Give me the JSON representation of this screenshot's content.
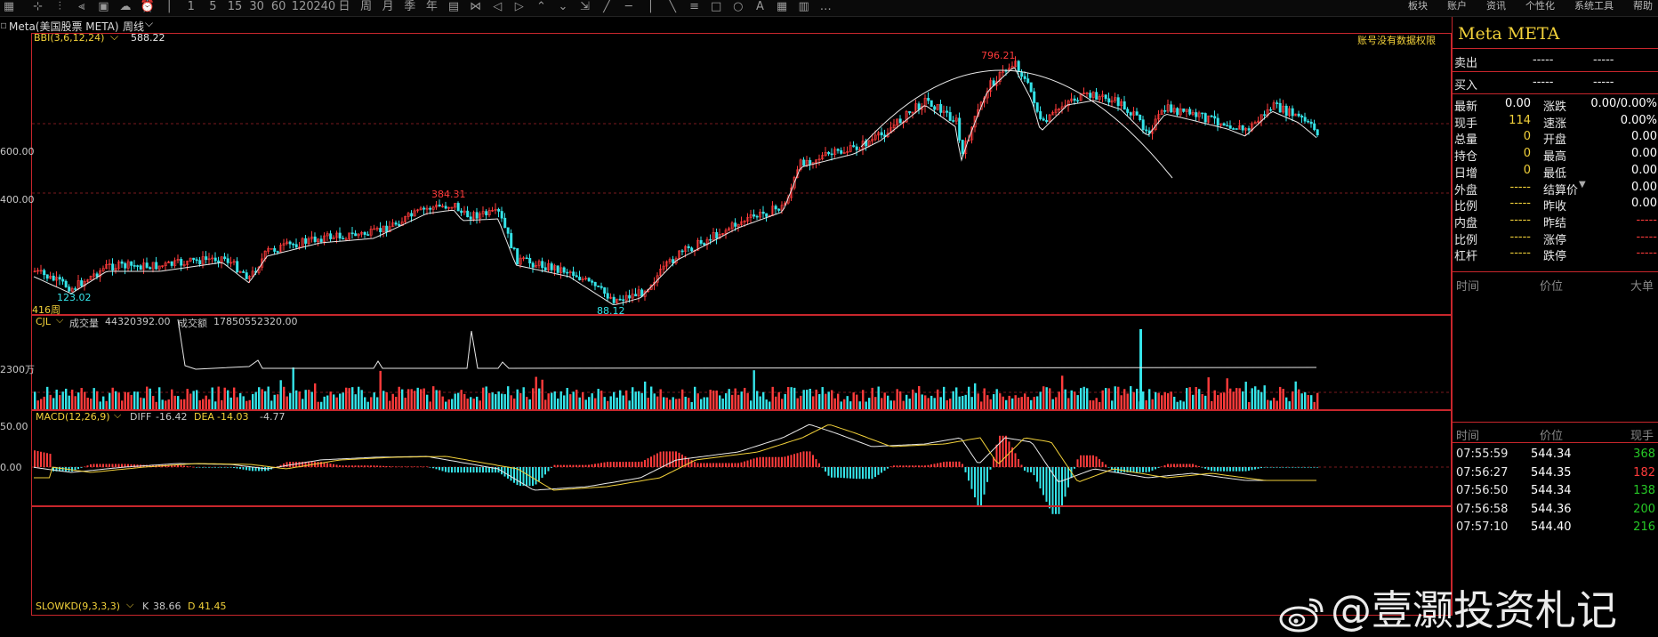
{
  "toolbar": {
    "icons": [
      "grid-icon",
      "crosshair-icon",
      "candle-icon",
      "split-icon",
      "window-icon",
      "cloud-icon",
      "alarm-icon",
      "dash-icon",
      "period-1-icon",
      "period-5-icon",
      "period-15-icon",
      "period-30-icon",
      "period-60-icon",
      "period-120-icon",
      "period-240-icon",
      "day-icon",
      "week-icon",
      "month-icon",
      "season-icon",
      "year-icon",
      "multi-icon",
      "cross-icon",
      "left-icon",
      "right-icon",
      "up-icon",
      "down-icon",
      "expand-icon",
      "line-icon",
      "hline-icon",
      "vline-icon",
      "ray-icon",
      "channel-icon",
      "rect-icon",
      "ellipse-icon",
      "text-icon",
      "grid2-icon",
      "layout-icon",
      "more-icon"
    ],
    "menu": [
      "板块",
      "账户",
      "资讯",
      "个性化",
      "系统工具",
      "帮助"
    ]
  },
  "stockbar": {
    "name": "Meta(美国股票 META)",
    "period": "周线",
    "period_arrow": "⌵"
  },
  "main_pane": {
    "indicator": "BBI(3,6,12,24)",
    "indicator_value": "588.22",
    "notice": "账号没有数据权限",
    "y_labels": [
      "600.00",
      "400.00"
    ],
    "high_label": "796.21",
    "mid_high_label": "384.31",
    "low_label_left": "123.02",
    "low_label_mid": "88.12",
    "bars_label": "416周"
  },
  "volume_pane": {
    "indicator": "CJL",
    "vol_label": "成交量",
    "vol_value": "44320392.00",
    "amount_label": "成交额",
    "amount_value": "17850552320.00",
    "y_label": "2300万"
  },
  "macd_pane": {
    "indicator": "MACD(12,26,9)",
    "diff_label": "DIFF",
    "diff_value": "-16.42",
    "dea_label": "DEA",
    "dea_value": "-14.03",
    "macd_value": "-4.77",
    "y_labels": [
      "50.00",
      "0.00"
    ]
  },
  "kd_pane": {
    "indicator": "SLOWKD(9,3,3,3)",
    "k_label": "K",
    "k_value": "38.66",
    "d_label": "D",
    "d_value": "41.45"
  },
  "quote_panel": {
    "title": "Meta META",
    "sell": {
      "label": "卖出",
      "price": "-----",
      "vol": "-----"
    },
    "buy": {
      "label": "买入",
      "price": "-----",
      "vol": "-----"
    },
    "rows": [
      {
        "l1": "最新",
        "v1": "0.00",
        "l2": "涨跌",
        "v2": "0.00/0.00%"
      },
      {
        "l1": "现手",
        "v1": "114",
        "l2": "速涨",
        "v2": "0.00%"
      },
      {
        "l1": "总量",
        "v1": "0",
        "l2": "开盘",
        "v2": "0.00"
      },
      {
        "l1": "持仓",
        "v1": "0",
        "l2": "最高",
        "v2": "0.00"
      },
      {
        "l1": "日增",
        "v1": "0",
        "l2": "最低",
        "v2": "0.00"
      },
      {
        "l1": "外盘",
        "v1": "-----",
        "l2": "结算价",
        "v2": "0.00"
      },
      {
        "l1": "比例",
        "v1": "-----",
        "l2": "昨收",
        "v2": "0.00"
      },
      {
        "l1": "内盘",
        "v1": "-----",
        "l2": "昨结",
        "v2": "-----"
      },
      {
        "l1": "比例",
        "v1": "-----",
        "l2": "涨停",
        "v2": "-----"
      },
      {
        "l1": "杠杆",
        "v1": "-----",
        "l2": "跌停",
        "v2": "-----"
      }
    ],
    "tick_header": {
      "time": "时间",
      "price": "价位",
      "vol": "大单"
    },
    "trade_header": {
      "time": "时间",
      "price": "价位",
      "vol": "现手"
    },
    "trades": [
      {
        "time": "07:55:59",
        "price": "544.34",
        "vol": "368"
      },
      {
        "time": "07:56:27",
        "price": "544.35",
        "vol": "182"
      },
      {
        "time": "07:56:50",
        "price": "544.34",
        "vol": "138"
      },
      {
        "time": "07:56:58",
        "price": "544.36",
        "vol": "200"
      },
      {
        "time": "07:57:10",
        "price": "544.40",
        "vol": "216"
      }
    ]
  },
  "watermark": "@壹灏投资札记",
  "colors": {
    "up": "#ff3b3b",
    "down": "#35e4e9",
    "border": "#c8262c",
    "accent": "#f2d13a"
  }
}
